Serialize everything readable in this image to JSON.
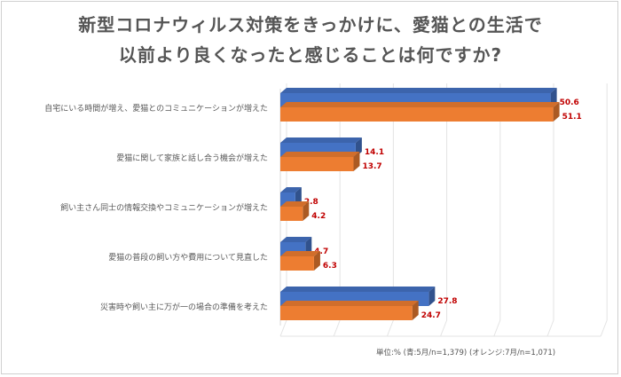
{
  "chart_data": {
    "type": "bar",
    "orientation": "horizontal",
    "style": "3d",
    "title_lines": [
      "新型コロナウィルス対策をきっかけに、愛猫との生活で",
      "以前より良くなったと感じることは何ですか?"
    ],
    "categories": [
      "自宅にいる時間が増え、愛猫とのコミュニケーションが増えた",
      "愛猫に関して家族と話し合う機会が増えた",
      "飼い主さん同士の情報交換やコミュニケーションが増えた",
      "愛猫の普段の飼い方や費用について見直した",
      "災害時や飼い主に万が一の場合の準備を考えた"
    ],
    "series": [
      {
        "values": [
          50.6,
          14.1,
          2.8,
          4.7,
          27.8
        ],
        "color": "#4472c4",
        "labels": [
          "50.6",
          "14.1",
          "2.8",
          "4.7",
          "27.8"
        ]
      },
      {
        "values": [
          51.1,
          13.7,
          4.2,
          6.3,
          24.7
        ],
        "color": "#ed7d31",
        "labels": [
          "51.1",
          "13.7",
          "4.2",
          "6.3",
          "24.7"
        ]
      }
    ],
    "xlim": [
      0,
      60
    ],
    "grid": true,
    "data_label_color": "#c00000",
    "footnote": "単位:% (青:5月/n=1,379)  (オレンジ:7月/n=1,071)"
  }
}
